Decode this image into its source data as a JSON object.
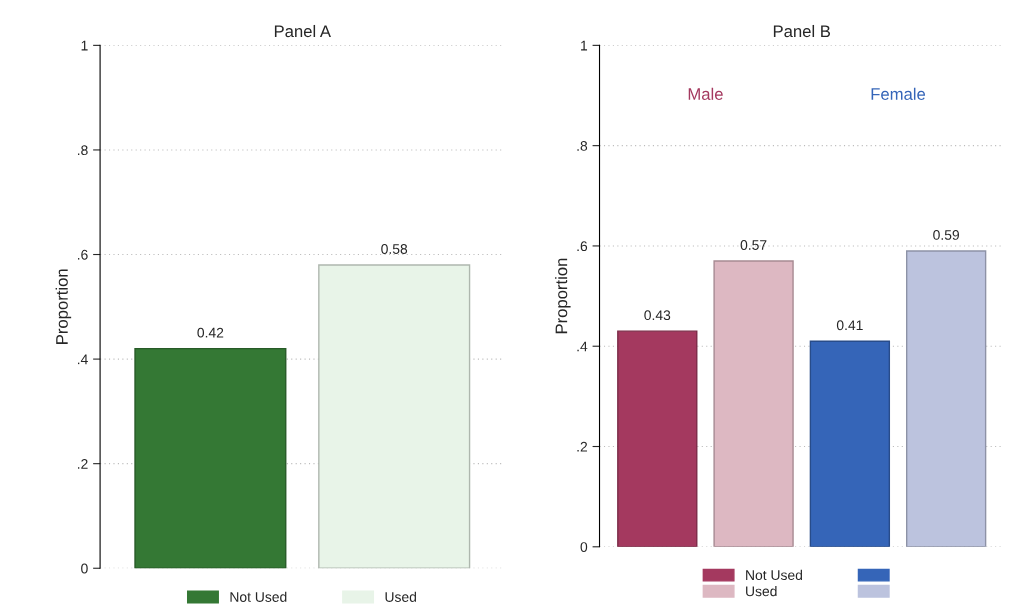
{
  "chart_data": [
    {
      "type": "bar",
      "title": "Panel A",
      "ylabel": "Proportion",
      "categories": [
        null,
        null
      ],
      "series": [
        {
          "name": "Not Used",
          "color": "#347834",
          "values": [
            0.42,
            null
          ]
        },
        {
          "name": "Used",
          "color": "#e8f4e8",
          "values": [
            null,
            0.58
          ]
        }
      ],
      "ylim": [
        0,
        1
      ],
      "yticks": [
        0,
        {
          "value": 0.2,
          "label": ".2"
        },
        {
          "value": 0.4,
          "label": ".4"
        },
        {
          "value": 0.6,
          "label": ".6"
        },
        {
          "value": 0.8,
          "label": ".8"
        },
        1
      ],
      "grid": "y",
      "legend": "bottom",
      "data_labels": true
    },
    {
      "type": "bar",
      "title": "Panel B",
      "ylabel": "Proportion",
      "categories": [
        null,
        null,
        null,
        null
      ],
      "series": [
        {
          "name": "Not Used",
          "color": "#a4395f",
          "values": [
            0.43,
            null,
            null,
            null
          ]
        },
        {
          "name": "Used",
          "color": "#ddb8c2",
          "values": [
            null,
            0.57,
            null,
            null
          ]
        },
        {
          "color": "#3565b8",
          "values": [
            null,
            null,
            0.41,
            null
          ]
        },
        {
          "color": "#bcc3de",
          "values": [
            null,
            null,
            null,
            0.59
          ]
        }
      ],
      "annotations": [
        "Male",
        "Female"
      ],
      "ylim": [
        0,
        1
      ],
      "yticks": [
        0,
        {
          "value": 0.2,
          "label": ".2"
        },
        {
          "value": 0.4,
          "label": ".4"
        },
        {
          "value": 0.6,
          "label": ".6"
        },
        {
          "value": 0.8,
          "label": ".8"
        },
        1
      ],
      "grid": "y",
      "legend": "bottom",
      "data_labels": true
    }
  ]
}
